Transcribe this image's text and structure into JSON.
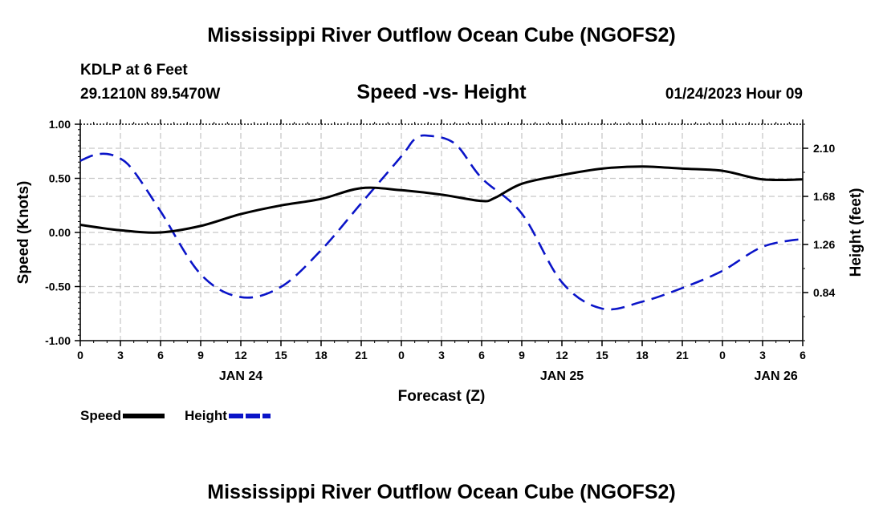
{
  "header": {
    "title": "Mississippi River Outflow Ocean Cube (NGOFS2)",
    "station": "KDLP at 6 Feet",
    "coords": "29.1210N  89.5470W",
    "subtitle": "Speed -vs- Height",
    "datetime": "01/24/2023 Hour 09"
  },
  "footer": {
    "title": "Mississippi River Outflow Ocean Cube (NGOFS2)"
  },
  "legend": {
    "speed_label": "Speed",
    "height_label": "Height"
  },
  "colors": {
    "speed": "#000000",
    "height": "#0a14c8",
    "grid": "#c8c8c8"
  },
  "chart_data": {
    "type": "line",
    "title": "Speed -vs- Height",
    "xlabel": "Forecast (Z)",
    "ylabel": "Speed (Knots)",
    "y2label": "Height (feet)",
    "xlim": [
      0,
      54
    ],
    "ylim": [
      -1.0,
      1.0
    ],
    "y2lim": [
      0.42,
      2.31
    ],
    "x_tick_labels": [
      "0",
      "3",
      "6",
      "9",
      "12",
      "15",
      "18",
      "21",
      "0",
      "3",
      "6",
      "9",
      "12",
      "15",
      "18",
      "21",
      "0",
      "3",
      "6"
    ],
    "y_ticks": [
      -1.0,
      -0.5,
      0.0,
      0.5,
      1.0
    ],
    "y_tick_labels": [
      "-1.00",
      "-0.50",
      "0.00",
      "0.50",
      "1.00"
    ],
    "y2_ticks": [
      0.84,
      1.26,
      1.68,
      2.1
    ],
    "y2_tick_labels": [
      "0.84",
      "1.26",
      "1.68",
      "2.10"
    ],
    "day_labels": [
      {
        "x": 12,
        "label": "JAN 24"
      },
      {
        "x": 36,
        "label": "JAN 25"
      },
      {
        "x": 52,
        "label": "JAN 26"
      }
    ],
    "series": [
      {
        "name": "Speed",
        "axis": "left",
        "style": "solid",
        "x": [
          0,
          3,
          6,
          9,
          12,
          15,
          18,
          21,
          24,
          27,
          30,
          31,
          33,
          36,
          39,
          42,
          45,
          48,
          51,
          54
        ],
        "values": [
          0.07,
          0.02,
          0.0,
          0.06,
          0.17,
          0.25,
          0.31,
          0.41,
          0.39,
          0.35,
          0.29,
          0.32,
          0.45,
          0.53,
          0.59,
          0.61,
          0.59,
          0.57,
          0.49,
          0.49
        ]
      },
      {
        "name": "Height",
        "axis": "right",
        "style": "dashed",
        "x": [
          0,
          1,
          2,
          3,
          4,
          6,
          9,
          12,
          15,
          18,
          21,
          24,
          25,
          26,
          28,
          30,
          33,
          36,
          39,
          42,
          45,
          48,
          51,
          54
        ],
        "values": [
          1.99,
          2.04,
          2.05,
          2.01,
          1.9,
          1.55,
          1.0,
          0.8,
          0.89,
          1.21,
          1.62,
          2.03,
          2.18,
          2.21,
          2.14,
          1.84,
          1.53,
          0.93,
          0.7,
          0.76,
          0.88,
          1.03,
          1.24,
          1.31
        ]
      }
    ]
  }
}
